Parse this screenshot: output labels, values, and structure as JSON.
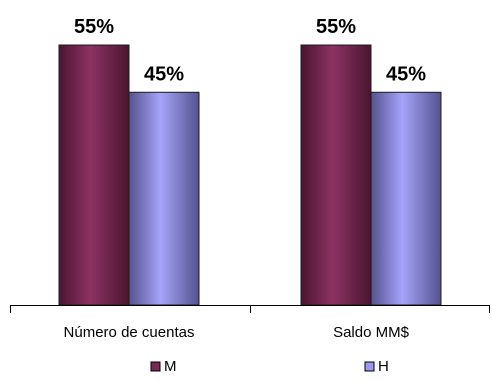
{
  "chart_data": {
    "type": "bar",
    "categories": [
      "Número de cuentas",
      "Saldo MM$"
    ],
    "series": [
      {
        "name": "M",
        "values": [
          55,
          55
        ],
        "labels": [
          "55%",
          "55%"
        ],
        "color": "#7a2a52"
      },
      {
        "name": "H",
        "values": [
          45,
          45
        ],
        "labels": [
          "45%",
          "45%"
        ],
        "color": "#9a98f0"
      }
    ],
    "legend_position": "bottom",
    "grid": false
  }
}
